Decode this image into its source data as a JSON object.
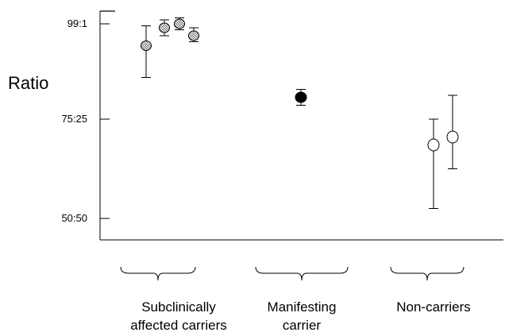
{
  "chart_data": {
    "type": "scatter",
    "ylabel": "Ratio",
    "y_ticks": [
      {
        "value": 99,
        "label": "99:1"
      },
      {
        "value": 75,
        "label": "75:25"
      },
      {
        "value": 50,
        "label": "50:50"
      }
    ],
    "ylim": [
      45,
      102
    ],
    "error_bars": true,
    "groups": [
      {
        "label_lines": [
          "Subclinically",
          "affected carriers"
        ],
        "marker": "hatched",
        "points": [
          {
            "y": 93.5,
            "low": 85.5,
            "high": 98.5
          },
          {
            "y": 98.0,
            "low": 96.0,
            "high": 100.0
          },
          {
            "y": 99.0,
            "low": 97.5,
            "high": 100.5
          },
          {
            "y": 96.0,
            "low": 94.5,
            "high": 98.0
          }
        ]
      },
      {
        "label_lines": [
          "Manifesting",
          "carrier"
        ],
        "marker": "filled",
        "points": [
          {
            "y": 80.5,
            "low": 78.5,
            "high": 82.5
          }
        ]
      },
      {
        "label_lines": [
          "Non-carriers"
        ],
        "marker": "open",
        "points": [
          {
            "y": 68.5,
            "low": 52.5,
            "high": 75.0
          },
          {
            "y": 70.5,
            "low": 62.5,
            "high": 81.0
          }
        ]
      }
    ]
  }
}
